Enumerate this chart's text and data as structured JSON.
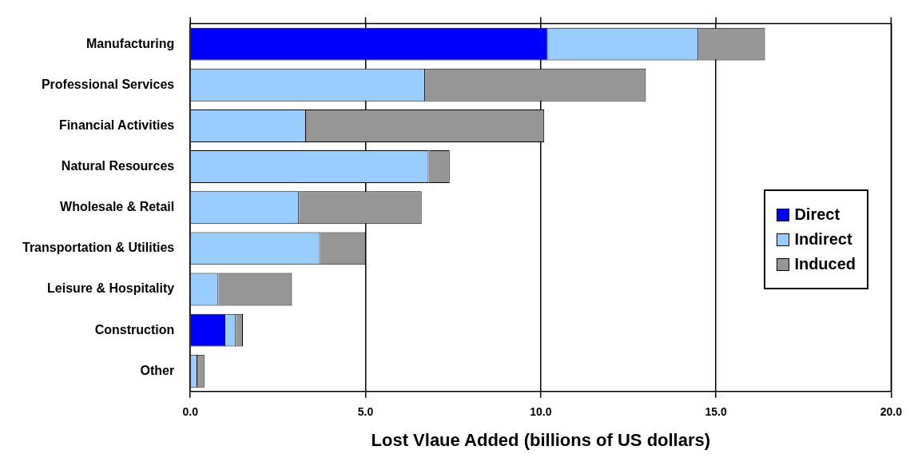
{
  "chart_data": {
    "type": "bar",
    "orientation": "horizontal",
    "stacked": true,
    "xlabel": "Lost Vlaue Added (billions of US dollars)",
    "categories": [
      "Manufacturing",
      "Professional Services",
      "Financial Activities",
      "Natural Resources",
      "Wholesale & Retail",
      "Transportation & Utilities",
      "Leisure & Hospitality",
      "Construction",
      "Other"
    ],
    "series": [
      {
        "name": "Direct",
        "color": "#0000ff",
        "values": [
          10.2,
          0,
          0,
          0,
          0,
          0,
          0,
          1.0,
          0
        ]
      },
      {
        "name": "Indirect",
        "color": "#99ccff",
        "values": [
          4.3,
          6.7,
          3.3,
          6.8,
          3.1,
          3.7,
          0.8,
          0.3,
          0.2
        ]
      },
      {
        "name": "Induced",
        "color": "#969696",
        "values": [
          1.9,
          6.3,
          6.8,
          0.6,
          3.5,
          1.3,
          2.1,
          0.2,
          0.2
        ]
      }
    ],
    "xlim": [
      0,
      20
    ],
    "xticks": [
      {
        "value": 0,
        "label": "0.0"
      },
      {
        "value": 5,
        "label": "5.0"
      },
      {
        "value": 10,
        "label": "10.0"
      },
      {
        "value": 15,
        "label": "15.0"
      },
      {
        "value": 20,
        "label": "20.0"
      }
    ],
    "grid": "x",
    "legend": "right"
  }
}
